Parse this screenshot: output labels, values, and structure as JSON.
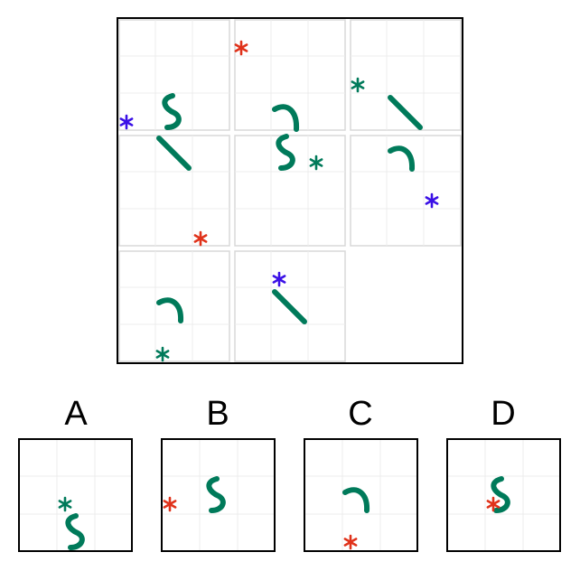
{
  "colors": {
    "shape_green": "#007a5a",
    "star_red": "#e0321a",
    "star_blue": "#3a10e6",
    "star_green": "#007a5a",
    "grid_line": "#e6e6e6",
    "cell_border": "#d8d8d8",
    "frame": "#000000"
  },
  "puzzle": {
    "cells": [
      {
        "row": 0,
        "col": 0,
        "shape": "s-curve-icon",
        "star": "blue"
      },
      {
        "row": 0,
        "col": 1,
        "shape": "hook-icon",
        "star": "red"
      },
      {
        "row": 0,
        "col": 2,
        "shape": "diagonal-line-icon",
        "star": "green"
      },
      {
        "row": 1,
        "col": 0,
        "shape": "diagonal-line-icon",
        "star": "red"
      },
      {
        "row": 1,
        "col": 1,
        "shape": "s-curve-icon",
        "star": "green"
      },
      {
        "row": 1,
        "col": 2,
        "shape": "hook-icon",
        "star": "blue"
      },
      {
        "row": 2,
        "col": 0,
        "shape": "hook-icon",
        "star": "green"
      },
      {
        "row": 2,
        "col": 1,
        "shape": "diagonal-line-icon",
        "star": "blue"
      },
      {
        "row": 2,
        "col": 2,
        "shape": "",
        "star": "",
        "missing": true
      }
    ]
  },
  "options": [
    {
      "label": "A",
      "shape": "s-curve-icon",
      "star": "green"
    },
    {
      "label": "B",
      "shape": "s-curve-icon",
      "star": "red"
    },
    {
      "label": "C",
      "shape": "hook-icon",
      "star": "red"
    },
    {
      "label": "D",
      "shape": "s-curve-icon",
      "star": "red"
    }
  ]
}
